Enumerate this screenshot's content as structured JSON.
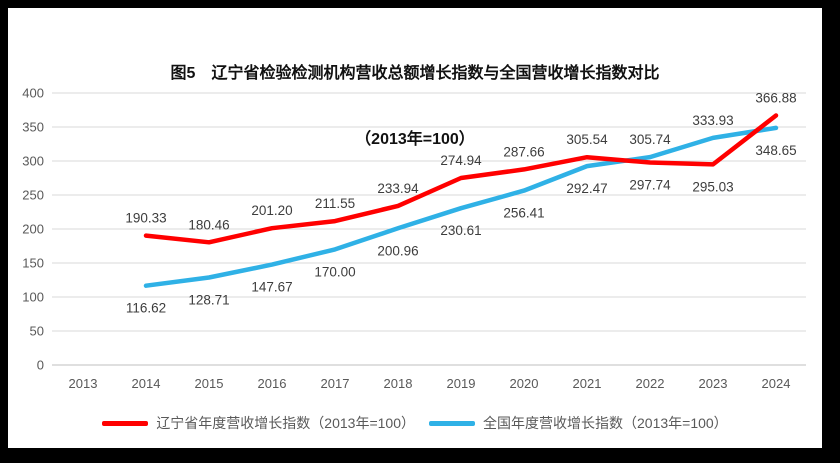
{
  "title": {
    "line1": "图5　辽宁省检验检测机构营收总额增长指数与全国营收增长指数对比",
    "line2": "（2013年=100）"
  },
  "chart_data": {
    "type": "line",
    "title": "图5 辽宁省检验检测机构营收总额增长指数与全国营收增长指数对比（2013年=100）",
    "categories": [
      "2013",
      "2014",
      "2015",
      "2016",
      "2017",
      "2018",
      "2019",
      "2020",
      "2021",
      "2022",
      "2023",
      "2024"
    ],
    "series": [
      {
        "name": "辽宁省年度营收增长指数（2013年=100）",
        "color": "#FF0000",
        "values": [
          null,
          190.33,
          180.46,
          201.2,
          211.55,
          233.94,
          274.94,
          287.66,
          305.54,
          297.74,
          295.03,
          366.88
        ]
      },
      {
        "name": "全国年度营收增长指数（2013年=100）",
        "color": "#2FB1E6",
        "values": [
          null,
          116.62,
          128.71,
          147.67,
          170.0,
          200.96,
          230.61,
          256.41,
          292.47,
          305.74,
          333.93,
          348.65
        ]
      }
    ],
    "ylim": [
      0,
      400
    ],
    "yticks": [
      0,
      50,
      100,
      150,
      200,
      250,
      300,
      350,
      400
    ],
    "grid": true,
    "data_labels": true,
    "data_label_decimals": 2,
    "legend_position": "bottom",
    "xlabel": "",
    "ylabel": ""
  },
  "colors": {
    "grid": "#D9D9D9",
    "axis": "#BFBFBF",
    "tick_text": "#595959",
    "data_label_text": "#3D3D3D",
    "frame": "#000000",
    "background": "#FFFFFF"
  }
}
